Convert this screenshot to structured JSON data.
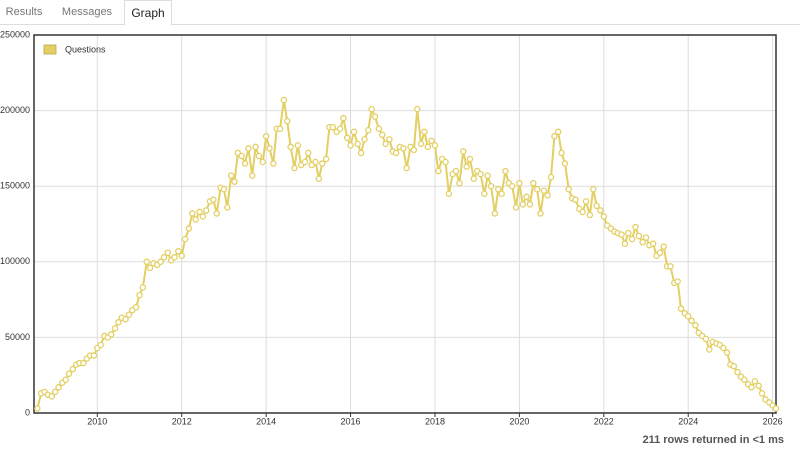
{
  "tabs": [
    "Results",
    "Messages",
    "Graph"
  ],
  "status": "211 rows returned in <1 ms",
  "chart_data": {
    "type": "line",
    "x": [
      2008.58,
      2008.67,
      2008.75,
      2008.83,
      2008.92,
      2009,
      2009.08,
      2009.17,
      2009.25,
      2009.33,
      2009.42,
      2009.5,
      2009.58,
      2009.67,
      2009.75,
      2009.83,
      2009.92,
      2010,
      2010.08,
      2010.17,
      2010.25,
      2010.33,
      2010.42,
      2010.5,
      2010.58,
      2010.67,
      2010.75,
      2010.83,
      2010.92,
      2011,
      2011.08,
      2011.17,
      2011.25,
      2011.33,
      2011.42,
      2011.5,
      2011.58,
      2011.67,
      2011.75,
      2011.83,
      2011.92,
      2012,
      2012.08,
      2012.17,
      2012.25,
      2012.33,
      2012.42,
      2012.5,
      2012.58,
      2012.67,
      2012.75,
      2012.83,
      2012.92,
      2013,
      2013.08,
      2013.17,
      2013.25,
      2013.33,
      2013.42,
      2013.5,
      2013.58,
      2013.67,
      2013.75,
      2013.83,
      2013.92,
      2014,
      2014.08,
      2014.17,
      2014.25,
      2014.33,
      2014.42,
      2014.5,
      2014.58,
      2014.67,
      2014.75,
      2014.83,
      2014.92,
      2015,
      2015.08,
      2015.17,
      2015.25,
      2015.33,
      2015.42,
      2015.5,
      2015.58,
      2015.67,
      2015.75,
      2015.83,
      2015.92,
      2016,
      2016.08,
      2016.17,
      2016.25,
      2016.33,
      2016.42,
      2016.5,
      2016.58,
      2016.67,
      2016.75,
      2016.83,
      2016.92,
      2017,
      2017.08,
      2017.17,
      2017.25,
      2017.33,
      2017.42,
      2017.5,
      2017.58,
      2017.67,
      2017.75,
      2017.83,
      2017.92,
      2018,
      2018.08,
      2018.17,
      2018.25,
      2018.33,
      2018.42,
      2018.5,
      2018.58,
      2018.67,
      2018.75,
      2018.83,
      2018.92,
      2019,
      2019.08,
      2019.17,
      2019.25,
      2019.33,
      2019.42,
      2019.5,
      2019.58,
      2019.67,
      2019.75,
      2019.83,
      2019.92,
      2020,
      2020.08,
      2020.17,
      2020.25,
      2020.33,
      2020.42,
      2020.5,
      2020.58,
      2020.67,
      2020.75,
      2020.83,
      2020.92,
      2021,
      2021.08,
      2021.17,
      2021.25,
      2021.33,
      2021.42,
      2021.5,
      2021.58,
      2021.67,
      2021.75,
      2021.83,
      2021.92,
      2022,
      2022.08,
      2022.17,
      2022.25,
      2022.33,
      2022.42,
      2022.5,
      2022.58,
      2022.67,
      2022.75,
      2022.83,
      2022.92,
      2023,
      2023.08,
      2023.17,
      2023.25,
      2023.33,
      2023.42,
      2023.5,
      2023.58,
      2023.67,
      2023.75,
      2023.83,
      2023.92,
      2024,
      2024.08,
      2024.17,
      2024.25,
      2024.33,
      2024.42,
      2024.5,
      2024.58,
      2024.67,
      2024.75,
      2024.83,
      2024.92,
      2025,
      2025.08,
      2025.17,
      2025.25,
      2025.33,
      2025.42,
      2025.5,
      2025.58,
      2025.67,
      2025.75,
      2025.83,
      2025.92,
      2026,
      2026.08
    ],
    "series": [
      {
        "name": "Questions",
        "color": "#e3cf63",
        "values": [
          3000,
          13000,
          14000,
          12000,
          11000,
          14000,
          17000,
          20000,
          22000,
          26000,
          29000,
          32000,
          33000,
          33000,
          36000,
          38000,
          38000,
          43000,
          45000,
          51000,
          50000,
          52000,
          56000,
          60000,
          63000,
          62000,
          65000,
          68000,
          70000,
          78000,
          83000,
          100000,
          96000,
          99000,
          98000,
          100000,
          103000,
          106000,
          101000,
          103000,
          107000,
          104000,
          115000,
          122000,
          132000,
          128000,
          133000,
          130000,
          134000,
          140000,
          141000,
          132000,
          149000,
          148000,
          136000,
          157000,
          153000,
          172000,
          170000,
          165000,
          175000,
          157000,
          176000,
          170000,
          166000,
          183000,
          175000,
          165000,
          188000,
          188000,
          207000,
          193000,
          176000,
          162000,
          177000,
          164000,
          166000,
          172000,
          164000,
          166000,
          155000,
          165000,
          168000,
          189000,
          189000,
          186000,
          188000,
          195000,
          182000,
          177000,
          186000,
          178000,
          172000,
          181000,
          187000,
          201000,
          196000,
          188000,
          184000,
          178000,
          181000,
          173000,
          172000,
          176000,
          175000,
          162000,
          176000,
          174000,
          201000,
          178000,
          186000,
          176000,
          180000,
          177000,
          160000,
          168000,
          166000,
          145000,
          158000,
          160000,
          152000,
          173000,
          163000,
          168000,
          155000,
          160000,
          158000,
          145000,
          157000,
          150000,
          132000,
          148000,
          145000,
          160000,
          152000,
          150000,
          136000,
          152000,
          138000,
          143000,
          138000,
          152000,
          148000,
          132000,
          147000,
          144000,
          156000,
          183000,
          186000,
          172000,
          165000,
          148000,
          142000,
          141000,
          135000,
          133000,
          140000,
          131000,
          148000,
          137000,
          134000,
          130000,
          124000,
          122000,
          120000,
          119000,
          118000,
          112000,
          119000,
          115000,
          123000,
          117000,
          113000,
          116000,
          111000,
          112000,
          104000,
          106000,
          110000,
          97000,
          97000,
          86000,
          87000,
          69000,
          66000,
          64000,
          61000,
          58000,
          53000,
          51000,
          49000,
          42000,
          47000,
          46000,
          45000,
          43000,
          40000,
          32000,
          31000,
          27000,
          24000,
          22000,
          19000,
          17000,
          21000,
          18000,
          13000,
          9000,
          7000,
          5000,
          3000
        ]
      }
    ],
    "xlim": [
      2008.5,
      2026.08
    ],
    "xticks": [
      2010,
      2012,
      2014,
      2016,
      2018,
      2020,
      2022,
      2024,
      2026
    ],
    "ylim": [
      0,
      250000
    ],
    "yticks": [
      0,
      50000,
      100000,
      150000,
      200000,
      250000
    ],
    "grid": true,
    "legend": "top-left"
  }
}
